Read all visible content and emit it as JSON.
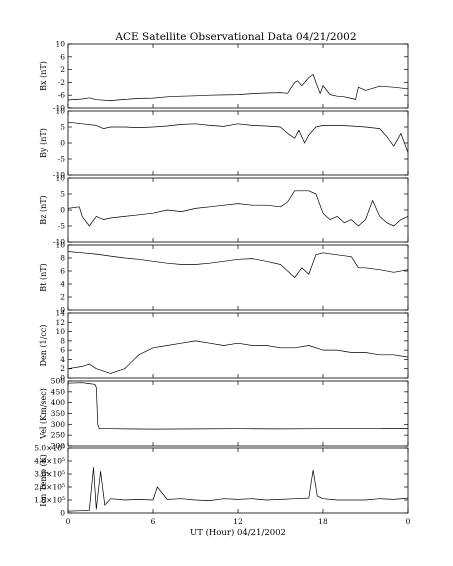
{
  "figure": {
    "title": "ACE Satellite Observational Data   04/21/2002",
    "xlabel": "UT (Hour)   04/21/2002",
    "x_ticks": [
      "0",
      "6",
      "12",
      "18",
      "0"
    ]
  },
  "chart_data": [
    {
      "type": "line",
      "ylabel": "Bx (nT)",
      "ylim": [
        -10,
        10
      ],
      "y_ticks": [
        10,
        6,
        2,
        -2,
        -6,
        -10
      ],
      "xlim": [
        0,
        24
      ],
      "series": [
        {
          "name": "",
          "x": [
            0,
            1,
            1.5,
            2,
            3,
            4,
            5,
            6,
            7,
            8,
            9,
            10,
            11,
            12,
            13,
            14,
            15,
            15.5,
            16,
            16.2,
            16.5,
            17,
            17.3,
            17.5,
            17.8,
            18,
            18.5,
            19,
            19.5,
            20,
            20.3,
            20.5,
            21,
            22,
            23,
            24
          ],
          "y": [
            -7.5,
            -7.2,
            -6.8,
            -7.4,
            -7.7,
            -7.3,
            -7,
            -6.9,
            -6.5,
            -6.3,
            -6.2,
            -6,
            -5.9,
            -5.8,
            -5.5,
            -5.3,
            -5.2,
            -5.4,
            -2,
            -1.5,
            -3,
            -0.5,
            0.5,
            -2,
            -5.5,
            -3,
            -5.8,
            -6.3,
            -6.5,
            -7,
            -7.3,
            -3.5,
            -4.5,
            -3.2,
            -3.5,
            -4
          ]
        }
      ]
    },
    {
      "type": "line",
      "ylabel": "By (nT)",
      "ylim": [
        -10,
        10
      ],
      "y_ticks": [
        10,
        5,
        0,
        -5,
        -10
      ],
      "xlim": [
        0,
        24
      ],
      "series": [
        {
          "name": "",
          "x": [
            0,
            1,
            2,
            2.5,
            3,
            4,
            5,
            6,
            7,
            8,
            9,
            10,
            11,
            12,
            13,
            14,
            15,
            15.5,
            16,
            16.3,
            16.7,
            17,
            17.5,
            18,
            19,
            20,
            21,
            22,
            22.5,
            23,
            23.5,
            24
          ],
          "y": [
            6.5,
            6,
            5.5,
            4.5,
            5,
            5,
            4.8,
            5,
            5.3,
            5.8,
            6,
            5.5,
            5.2,
            6,
            5.5,
            5.3,
            5,
            3,
            1.5,
            4,
            0,
            2.5,
            5,
            5.5,
            5.5,
            5.3,
            5,
            4.5,
            2,
            -1,
            3,
            -3
          ]
        }
      ]
    },
    {
      "type": "line",
      "ylabel": "Bz (nT)",
      "ylim": [
        -10,
        10
      ],
      "y_ticks": [
        10,
        5,
        0,
        -5,
        -10
      ],
      "xlim": [
        0,
        24
      ],
      "series": [
        {
          "name": "",
          "x": [
            0,
            0.8,
            1,
            1.5,
            2,
            2.5,
            3,
            4,
            5,
            6,
            7,
            8,
            9,
            10,
            11,
            12,
            13,
            14,
            15,
            15.5,
            16,
            17,
            17.5,
            18,
            18.5,
            19,
            19.5,
            20,
            20.5,
            21,
            21.5,
            22,
            22.5,
            23,
            23.5,
            24
          ],
          "y": [
            0.5,
            1,
            -2,
            -5,
            -2,
            -3,
            -2.5,
            -2,
            -1.5,
            -1,
            0,
            -0.5,
            0.5,
            1,
            1.5,
            2,
            1.5,
            1.5,
            1,
            2.5,
            6,
            6,
            5,
            -1,
            -3,
            -2,
            -4,
            -3,
            -5,
            -3,
            3,
            -2,
            -4,
            -5,
            -3,
            -2
          ]
        }
      ]
    },
    {
      "type": "line",
      "ylabel": "Bt (nT)",
      "ylim": [
        0,
        10
      ],
      "y_ticks": [
        10,
        8,
        6,
        4,
        2,
        0
      ],
      "xlim": [
        0,
        24
      ],
      "series": [
        {
          "name": "",
          "x": [
            0,
            1,
            2,
            3,
            4,
            5,
            6,
            7,
            8,
            9,
            10,
            11,
            12,
            13,
            14,
            15,
            15.5,
            16,
            16.5,
            17,
            17.5,
            18,
            19,
            20,
            20.5,
            21,
            22,
            23,
            24
          ],
          "y": [
            9,
            8.8,
            8.6,
            8.3,
            8,
            7.8,
            7.5,
            7.2,
            7,
            7,
            7.2,
            7.5,
            7.8,
            7.9,
            7.5,
            7,
            6,
            5,
            6.5,
            5.5,
            8.5,
            8.8,
            8.5,
            8.2,
            6.5,
            6.5,
            6.2,
            5.8,
            6.2
          ]
        }
      ]
    },
    {
      "type": "line",
      "ylabel": "Den (1/cc)",
      "ylim": [
        0,
        14
      ],
      "y_ticks": [
        14,
        12,
        10,
        8,
        6,
        4,
        2,
        0
      ],
      "xlim": [
        0,
        24
      ],
      "series": [
        {
          "name": "",
          "x": [
            0,
            1,
            1.5,
            2,
            3,
            4,
            5,
            6,
            7,
            8,
            9,
            10,
            11,
            12,
            13,
            14,
            15,
            16,
            17,
            18,
            19,
            20,
            21,
            22,
            23,
            24
          ],
          "y": [
            2,
            2.5,
            3,
            2,
            1,
            2,
            5,
            6.5,
            7,
            7.5,
            8,
            7.5,
            7,
            7.5,
            7,
            7,
            6.5,
            6.5,
            7,
            6,
            6,
            5.5,
            5.5,
            5,
            5,
            4.5
          ]
        }
      ]
    },
    {
      "type": "line",
      "ylabel": "Vel (Km/sec)",
      "ylim": [
        200,
        500
      ],
      "y_ticks": [
        500,
        450,
        400,
        350,
        300,
        250,
        200
      ],
      "xlim": [
        0,
        24
      ],
      "series": [
        {
          "name": "",
          "x": [
            0,
            1,
            1.5,
            1.9,
            2,
            2.1,
            2.2,
            3,
            6,
            9,
            12,
            15,
            18,
            21,
            24
          ],
          "y": [
            490,
            492,
            488,
            485,
            470,
            300,
            280,
            280,
            278,
            279,
            280,
            279,
            280,
            280,
            281
          ]
        }
      ]
    },
    {
      "type": "line",
      "ylabel": "Ion Temp (K)",
      "ylim": [
        0,
        500000
      ],
      "y_ticks": [
        "5.0×10⁵",
        "4.0×10⁵",
        "3.0×10⁵",
        "2.0×10⁵",
        "1.0×10⁵",
        "0"
      ],
      "xlim": [
        0,
        24
      ],
      "series": [
        {
          "name": "",
          "x": [
            0,
            1,
            1.5,
            1.8,
            2,
            2.3,
            2.6,
            3,
            4,
            5,
            6,
            6.3,
            7,
            8,
            9,
            10,
            11,
            12,
            13,
            14,
            15,
            16,
            17,
            17.3,
            17.6,
            18,
            19,
            20,
            21,
            22,
            23,
            24
          ],
          "y": [
            15000,
            18000,
            20000,
            350000,
            30000,
            320000,
            60000,
            110000,
            100000,
            105000,
            100000,
            200000,
            105000,
            110000,
            100000,
            95000,
            110000,
            105000,
            110000,
            100000,
            105000,
            110000,
            115000,
            330000,
            130000,
            110000,
            100000,
            100000,
            100000,
            110000,
            105000,
            115000
          ]
        }
      ]
    }
  ]
}
